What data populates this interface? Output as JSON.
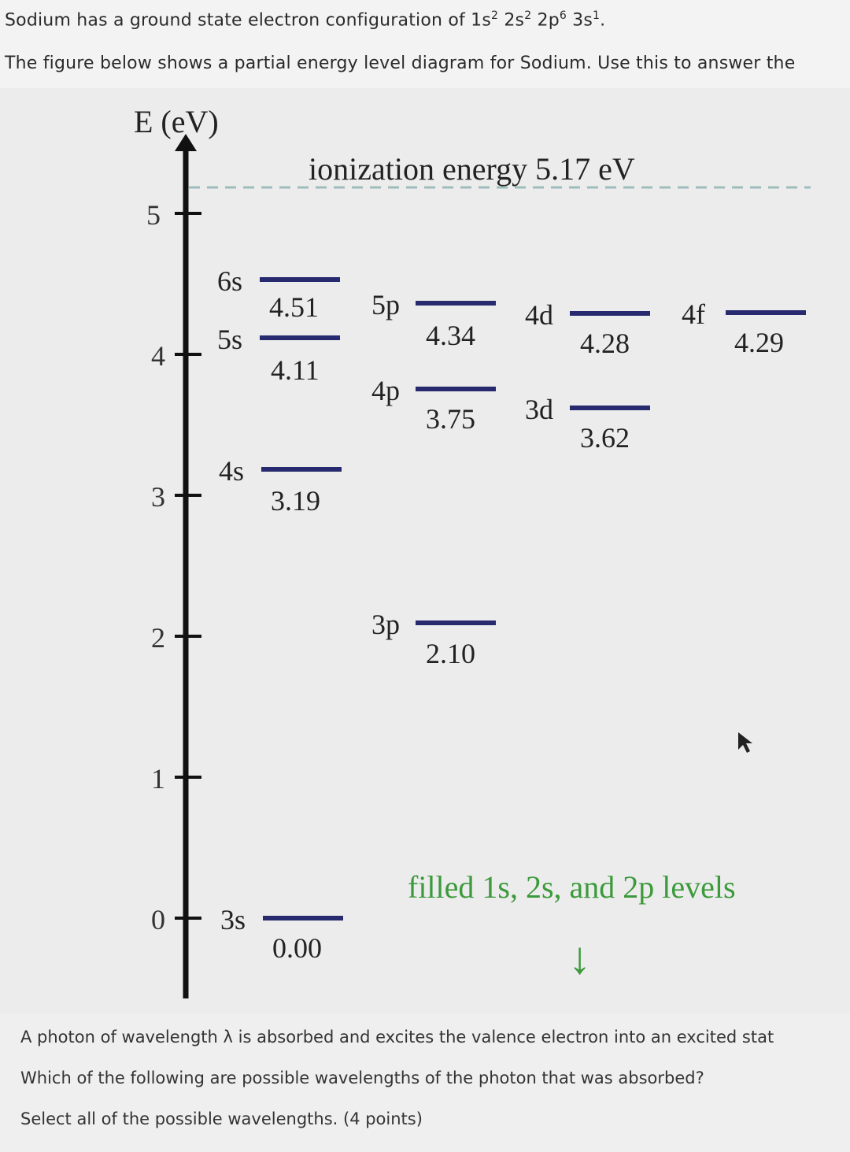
{
  "question": {
    "intro_pre": "Sodium has a ground state electron configuration of 1s",
    "cfg_1s_exp": "2",
    "cfg_2s": " 2s",
    "cfg_2s_exp": "2",
    "cfg_2p": " 2p",
    "cfg_2p_exp": "6",
    "cfg_3s": " 3s",
    "cfg_3s_exp": "1",
    "cfg_end": ".",
    "line2": "The figure below shows a partial energy level diagram for Sodium. Use this to answer the",
    "line3": "A photon of wavelength λ is absorbed and excites the valence electron into an excited stat",
    "line4": "Which of the following are possible wavelengths of the photon that was absorbed?",
    "line5": "Select all of the possible wavelengths. (4 points)"
  },
  "diagram": {
    "axis_label": "E (eV)",
    "ionization_label": "ionization energy 5.17 eV",
    "ticks": [
      "0",
      "1",
      "2",
      "3",
      "4",
      "5"
    ],
    "levels": [
      {
        "name": "3s",
        "energy": "0.00"
      },
      {
        "name": "4s",
        "energy": "3.19"
      },
      {
        "name": "5s",
        "energy": "4.11"
      },
      {
        "name": "6s",
        "energy": "4.51"
      },
      {
        "name": "3p",
        "energy": "2.10"
      },
      {
        "name": "4p",
        "energy": "3.75"
      },
      {
        "name": "5p",
        "energy": "4.34"
      },
      {
        "name": "3d",
        "energy": "3.62"
      },
      {
        "name": "4d",
        "energy": "4.28"
      },
      {
        "name": "4f",
        "energy": "4.29"
      }
    ],
    "filled_note": "filled 1s, 2s, and 2p levels",
    "arrow_glyph": "↓",
    "colors": {
      "level": "#272a6e",
      "note": "#3c9a3c",
      "axis": "#111111",
      "dashed": "#9fbcbc"
    }
  }
}
